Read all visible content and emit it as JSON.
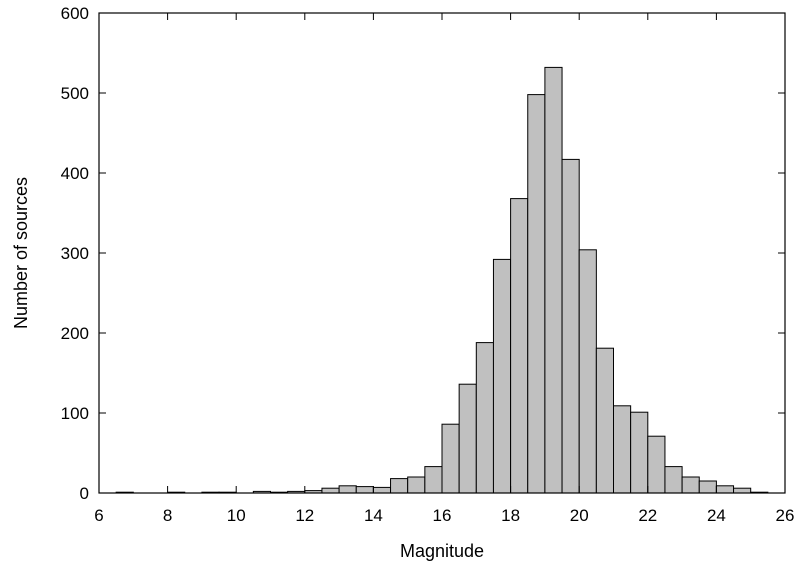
{
  "chart_data": {
    "type": "bar",
    "title": "",
    "xlabel": "Magnitude",
    "ylabel": "Number of sources",
    "xlim": [
      6,
      26
    ],
    "ylim": [
      0,
      600
    ],
    "xticks": [
      6,
      8,
      10,
      12,
      14,
      16,
      18,
      20,
      22,
      24,
      26
    ],
    "yticks": [
      0,
      100,
      200,
      300,
      400,
      500,
      600
    ],
    "grid": false,
    "bar_color": "#c0c0c0",
    "edge_color": "#000000",
    "bin_width": 0.5,
    "bins": [
      {
        "x0": 6.5,
        "x1": 7.0,
        "value": 1
      },
      {
        "x0": 8.0,
        "x1": 8.5,
        "value": 1
      },
      {
        "x0": 9.0,
        "x1": 9.5,
        "value": 1
      },
      {
        "x0": 9.5,
        "x1": 10.0,
        "value": 1
      },
      {
        "x0": 10.5,
        "x1": 11.0,
        "value": 2
      },
      {
        "x0": 11.0,
        "x1": 11.5,
        "value": 1
      },
      {
        "x0": 11.5,
        "x1": 12.0,
        "value": 2
      },
      {
        "x0": 12.0,
        "x1": 12.5,
        "value": 3
      },
      {
        "x0": 12.5,
        "x1": 13.0,
        "value": 6
      },
      {
        "x0": 13.0,
        "x1": 13.5,
        "value": 9
      },
      {
        "x0": 13.5,
        "x1": 14.0,
        "value": 8
      },
      {
        "x0": 14.0,
        "x1": 14.5,
        "value": 7
      },
      {
        "x0": 14.5,
        "x1": 15.0,
        "value": 18
      },
      {
        "x0": 15.0,
        "x1": 15.5,
        "value": 20
      },
      {
        "x0": 15.5,
        "x1": 16.0,
        "value": 33
      },
      {
        "x0": 16.0,
        "x1": 16.5,
        "value": 86
      },
      {
        "x0": 16.5,
        "x1": 17.0,
        "value": 136
      },
      {
        "x0": 17.0,
        "x1": 17.5,
        "value": 188
      },
      {
        "x0": 17.5,
        "x1": 18.0,
        "value": 292
      },
      {
        "x0": 18.0,
        "x1": 18.5,
        "value": 368
      },
      {
        "x0": 18.5,
        "x1": 19.0,
        "value": 498
      },
      {
        "x0": 19.0,
        "x1": 19.5,
        "value": 532
      },
      {
        "x0": 19.5,
        "x1": 20.0,
        "value": 417
      },
      {
        "x0": 20.0,
        "x1": 20.5,
        "value": 304
      },
      {
        "x0": 20.5,
        "x1": 21.0,
        "value": 181
      },
      {
        "x0": 21.0,
        "x1": 21.5,
        "value": 109
      },
      {
        "x0": 21.5,
        "x1": 22.0,
        "value": 101
      },
      {
        "x0": 22.0,
        "x1": 22.5,
        "value": 71
      },
      {
        "x0": 22.5,
        "x1": 23.0,
        "value": 33
      },
      {
        "x0": 23.0,
        "x1": 23.5,
        "value": 20
      },
      {
        "x0": 23.5,
        "x1": 24.0,
        "value": 15
      },
      {
        "x0": 24.0,
        "x1": 24.5,
        "value": 9
      },
      {
        "x0": 24.5,
        "x1": 25.0,
        "value": 6
      },
      {
        "x0": 25.0,
        "x1": 25.5,
        "value": 1
      }
    ]
  }
}
